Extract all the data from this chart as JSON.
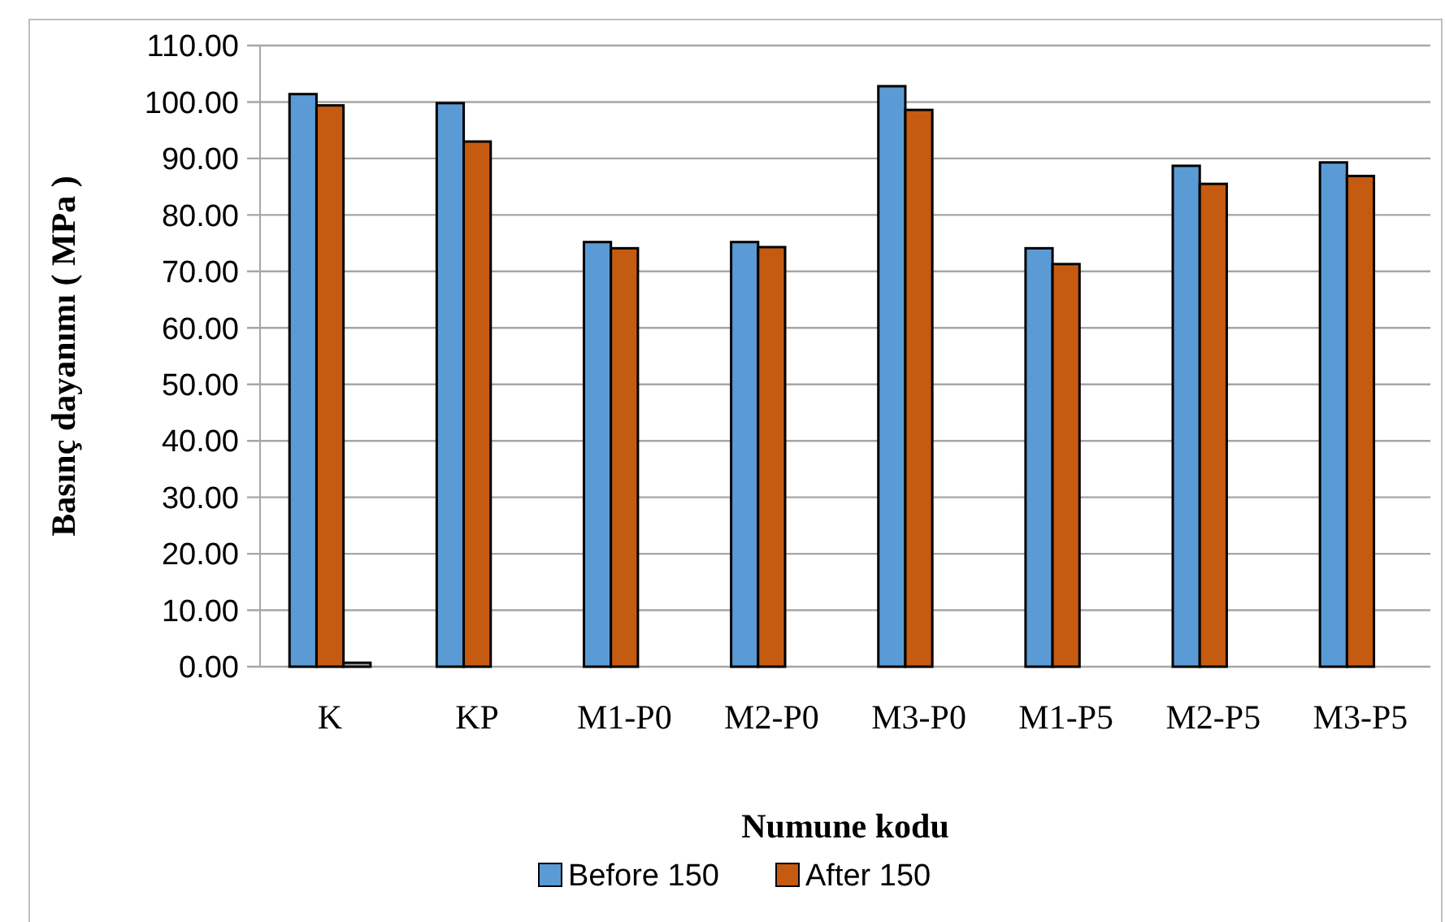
{
  "chart_data": {
    "type": "bar",
    "xlabel": "Numune kodu",
    "ylabel": "Basınç dayanımı ( MPa )",
    "categories": [
      "K",
      "KP",
      "M1-P0",
      "M2-P0",
      "M3-P0",
      "M1-P5",
      "M2-P5",
      "M3-P5"
    ],
    "series": [
      {
        "name": "Before 150",
        "color": "#5b9bd5",
        "values": [
          101.4,
          99.8,
          75.2,
          75.2,
          102.8,
          74.1,
          88.7,
          89.3
        ]
      },
      {
        "name": "After 150",
        "color": "#c55a11",
        "values": [
          99.4,
          93.0,
          74.1,
          74.3,
          98.6,
          71.3,
          85.5,
          86.9
        ]
      },
      {
        "color": "#a5a5a5",
        "values": [
          0.7,
          null,
          null,
          null,
          null,
          null,
          null,
          null
        ]
      }
    ],
    "ylim": [
      0,
      110
    ],
    "yticks": [
      {
        "value": 0,
        "label": "0.00"
      },
      {
        "value": 10,
        "label": "10.00"
      },
      {
        "value": 20,
        "label": "20.00"
      },
      {
        "value": 30,
        "label": "30.00"
      },
      {
        "value": 40,
        "label": "40.00"
      },
      {
        "value": 50,
        "label": "50.00"
      },
      {
        "value": 60,
        "label": "60.00"
      },
      {
        "value": 70,
        "label": "70.00"
      },
      {
        "value": 80,
        "label": "80.00"
      },
      {
        "value": 90,
        "label": "90.00"
      },
      {
        "value": 100,
        "label": "100.00"
      },
      {
        "value": 110,
        "label": "110.00"
      }
    ],
    "grid": "y",
    "legend": "bottom"
  }
}
